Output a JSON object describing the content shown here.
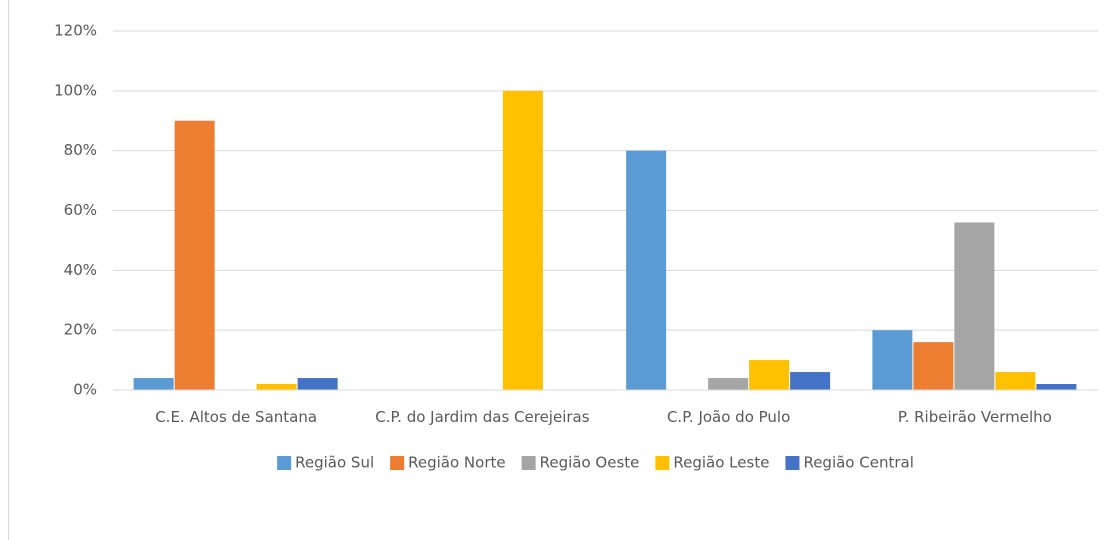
{
  "chart_data": {
    "type": "bar",
    "categories": [
      "C.E. Altos de Santana",
      "C.P. do Jardim das Cerejeiras",
      "C.P. João do Pulo",
      "P. Ribeirão Vermelho"
    ],
    "series": [
      {
        "name": "Região Sul",
        "color": "#5b9bd5",
        "values": [
          4,
          0,
          80,
          20
        ]
      },
      {
        "name": "Região Norte",
        "color": "#ed7d31",
        "values": [
          90,
          0,
          0,
          16
        ]
      },
      {
        "name": "Região Oeste",
        "color": "#a5a5a5",
        "values": [
          0,
          0,
          4,
          56
        ]
      },
      {
        "name": "Região Leste",
        "color": "#ffc000",
        "values": [
          2,
          100,
          10,
          6
        ]
      },
      {
        "name": "Região Central",
        "color": "#4472c4",
        "values": [
          4,
          0,
          6,
          2
        ]
      }
    ],
    "ylim": [
      0,
      120
    ],
    "yticks": [
      {
        "value": 0,
        "label": "0%"
      },
      {
        "value": 20,
        "label": "20%"
      },
      {
        "value": 40,
        "label": "40%"
      },
      {
        "value": 60,
        "label": "60%"
      },
      {
        "value": 80,
        "label": "80%"
      },
      {
        "value": 100,
        "label": "100%"
      },
      {
        "value": 120,
        "label": "120%"
      }
    ],
    "grid": true,
    "legend": "bottom"
  }
}
